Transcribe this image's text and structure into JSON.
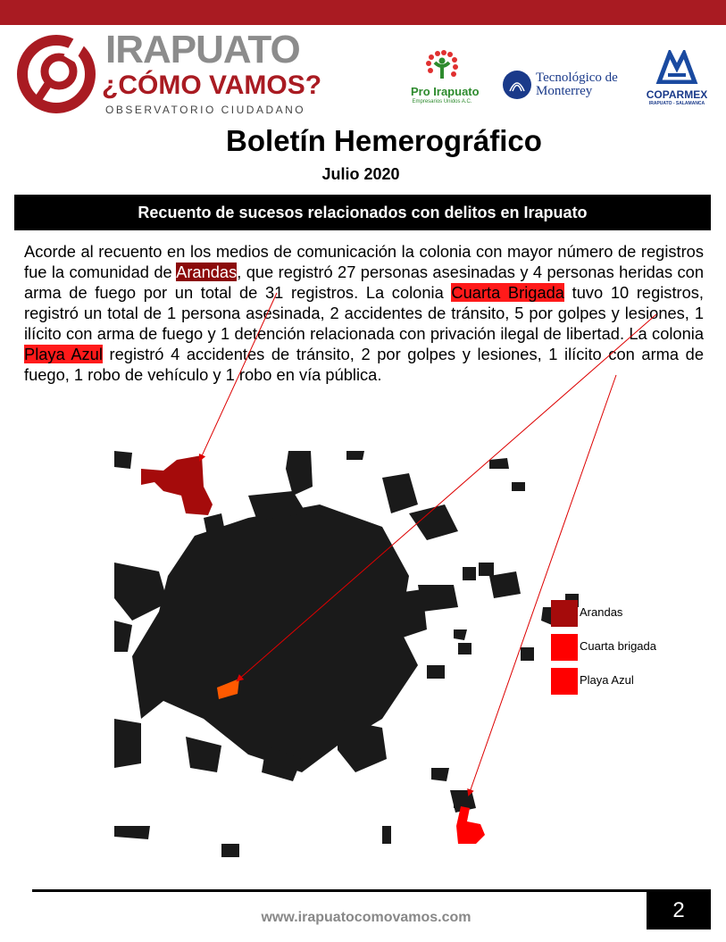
{
  "header": {
    "logo": {
      "line1": "IRAPUATO",
      "line2": "¿CÓMO VAMOS?",
      "line3": "OBSERVATORIO CIUDADANO"
    },
    "partners": [
      {
        "name": "Pro Irapuato",
        "sub": "Empresarios Unidos A.C."
      },
      {
        "name": "Tecnológico de Monterrey"
      },
      {
        "name": "COPARMEX",
        "sub": "IRAPUATO - SALAMANCA"
      }
    ],
    "brand_color": "#a91b22"
  },
  "title": "Boletín Hemerográfico",
  "subtitle": "Julio 2020",
  "banner": "Recuento de sucesos relacionados con delitos en Irapuato",
  "paragraph": {
    "p1": "Acorde al recuento en los medios de comunicación la colonia con mayor número de registros fue la comunidad de ",
    "h1": "Arandas",
    "p2": ", que registró 27 personas asesinadas y 4 personas heridas con arma de fuego por un total de 31 registros. La colonia ",
    "h2": "Cuarta Brigada",
    "p3": " tuvo 10 registros, registró un total de 1 persona asesinada, 2 accidentes de tránsito, 5 por golpes y lesiones, 1 ilícito con arma de fuego y 1 detención relacionada con privación ilegal de libertad. La colonia ",
    "h3": "Playa Azul",
    "p4": " registró 4 accidentes de tránsito, 2 por golpes y lesiones, 1 ilícito con arma de fuego, 1 robo de vehículo y 1 robo en vía pública."
  },
  "legend": [
    {
      "label": "Arandas",
      "color": "#a50b0b"
    },
    {
      "label": "Cuarta brigada",
      "color": "#ff0000"
    },
    {
      "label": "Playa Azul",
      "color": "#ff0000"
    }
  ],
  "footer": {
    "url": "www.irapuatocomovamos.com",
    "page": "2"
  }
}
